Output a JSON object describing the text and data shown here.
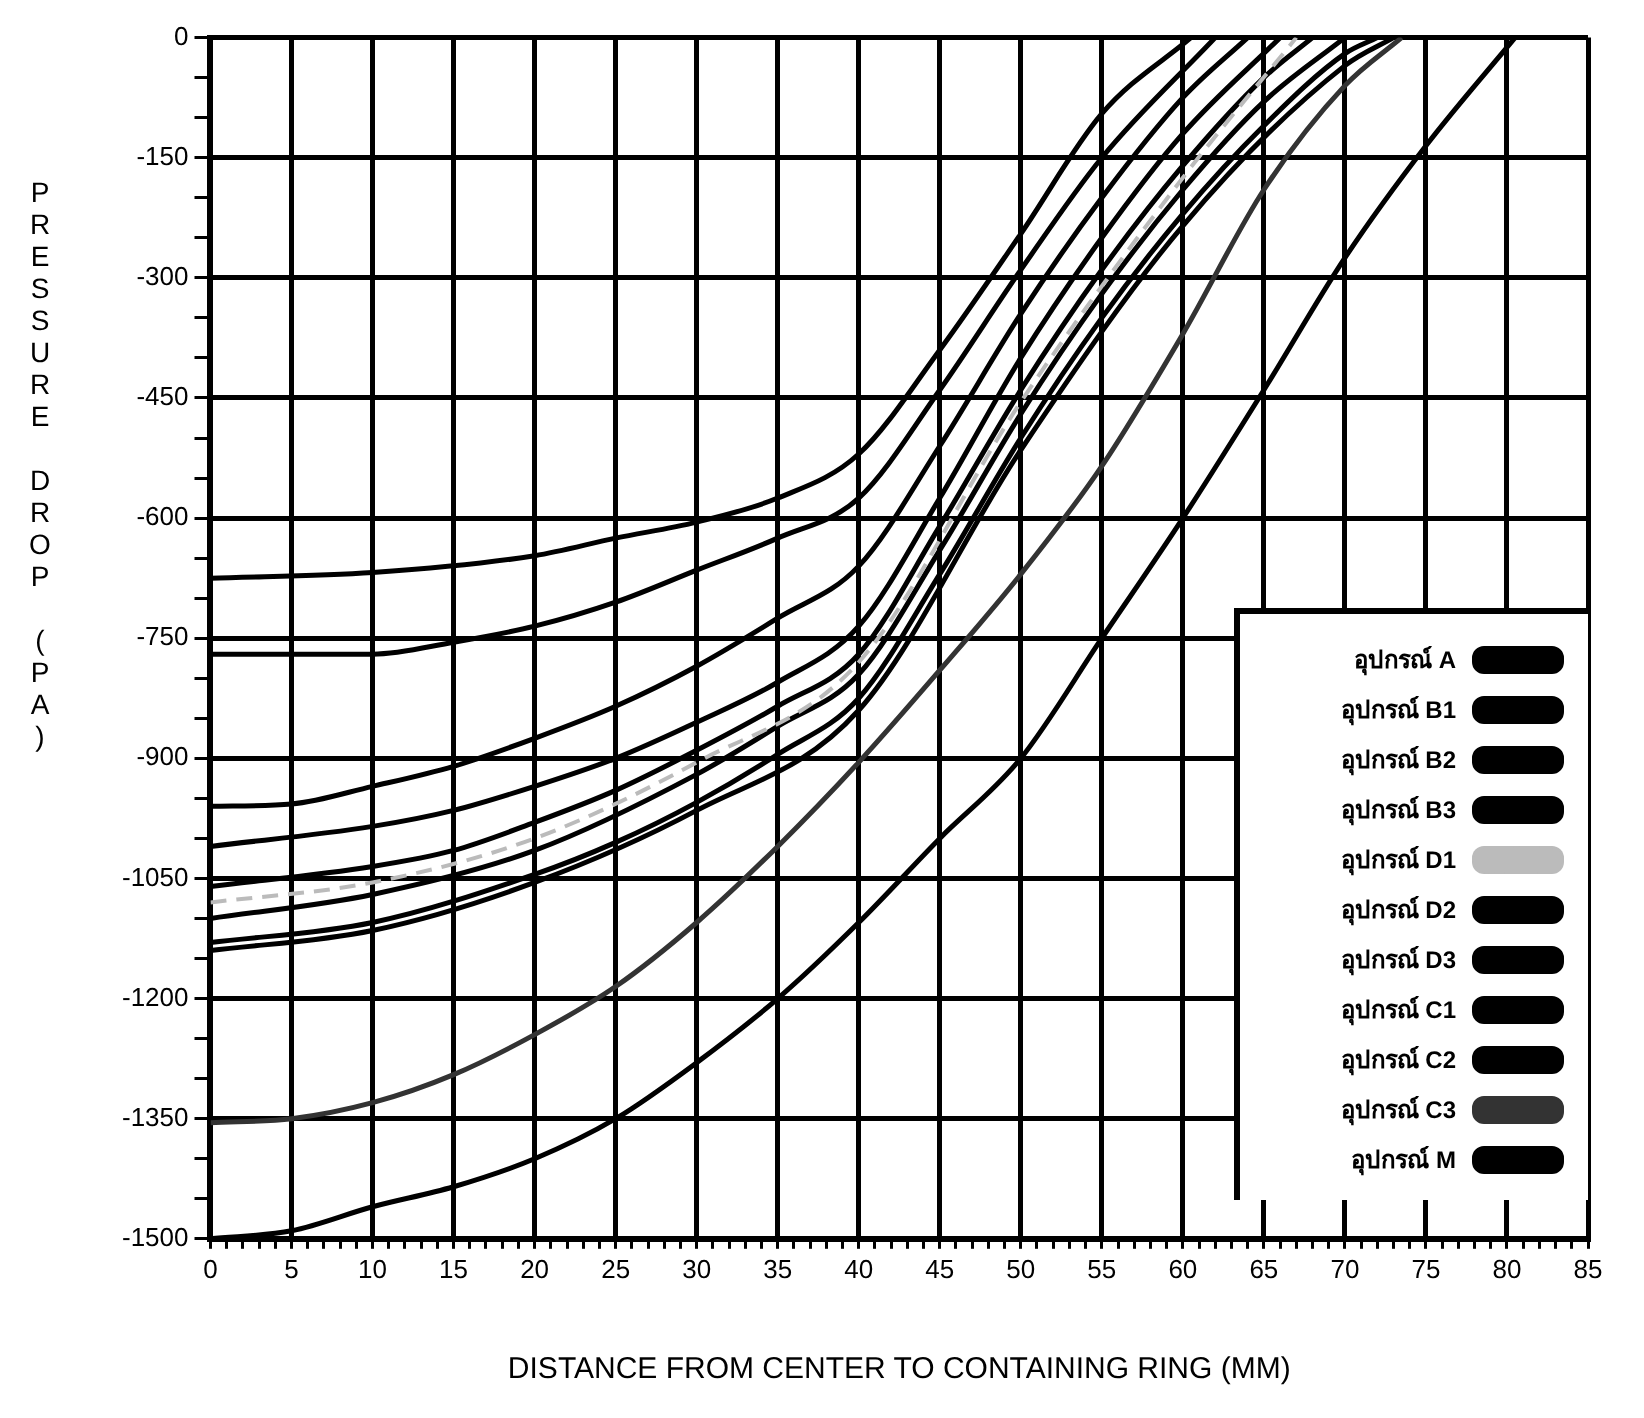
{
  "chart_data": {
    "type": "line",
    "xlabel": "DISTANCE FROM CENTER TO CONTAINING RING (MM)",
    "ylabel": "PRESSURE DROP (PA)",
    "xlim": [
      0,
      85
    ],
    "ylim": [
      -1500,
      0
    ],
    "xticks": [
      0,
      {
        "value": 1,
        "label": null
      },
      {
        "value": 2,
        "label": null
      },
      {
        "value": 3,
        "label": null
      },
      {
        "value": 4,
        "label": null
      },
      5,
      {
        "value": 6,
        "label": null
      },
      {
        "value": 7,
        "label": null
      },
      {
        "value": 8,
        "label": null
      },
      {
        "value": 9,
        "label": null
      },
      10,
      {
        "value": 11,
        "label": null
      },
      {
        "value": 12,
        "label": null
      },
      {
        "value": 13,
        "label": null
      },
      {
        "value": 14,
        "label": null
      },
      15,
      {
        "value": 16,
        "label": null
      },
      {
        "value": 17,
        "label": null
      },
      {
        "value": 18,
        "label": null
      },
      {
        "value": 19,
        "label": null
      },
      20,
      {
        "value": 21,
        "label": null
      },
      {
        "value": 22,
        "label": null
      },
      {
        "value": 23,
        "label": null
      },
      {
        "value": 24,
        "label": null
      },
      25,
      {
        "value": 26,
        "label": null
      },
      {
        "value": 27,
        "label": null
      },
      {
        "value": 28,
        "label": null
      },
      {
        "value": 29,
        "label": null
      },
      30,
      {
        "value": 31,
        "label": null
      },
      {
        "value": 32,
        "label": null
      },
      {
        "value": 33,
        "label": null
      },
      {
        "value": 34,
        "label": null
      },
      35,
      {
        "value": 36,
        "label": null
      },
      {
        "value": 37,
        "label": null
      },
      {
        "value": 38,
        "label": null
      },
      {
        "value": 39,
        "label": null
      },
      40,
      {
        "value": 41,
        "label": null
      },
      {
        "value": 42,
        "label": null
      },
      {
        "value": 43,
        "label": null
      },
      {
        "value": 44,
        "label": null
      },
      45,
      {
        "value": 46,
        "label": null
      },
      {
        "value": 47,
        "label": null
      },
      {
        "value": 48,
        "label": null
      },
      {
        "value": 49,
        "label": null
      },
      50,
      {
        "value": 51,
        "label": null
      },
      {
        "value": 52,
        "label": null
      },
      {
        "value": 53,
        "label": null
      },
      {
        "value": 54,
        "label": null
      },
      55,
      {
        "value": 56,
        "label": null
      },
      {
        "value": 57,
        "label": null
      },
      {
        "value": 58,
        "label": null
      },
      {
        "value": 59,
        "label": null
      },
      60,
      {
        "value": 61,
        "label": null
      },
      {
        "value": 62,
        "label": null
      },
      {
        "value": 63,
        "label": null
      },
      {
        "value": 64,
        "label": null
      },
      65,
      {
        "value": 66,
        "label": null
      },
      {
        "value": 67,
        "label": null
      },
      {
        "value": 68,
        "label": null
      },
      {
        "value": 69,
        "label": null
      },
      70,
      {
        "value": 71,
        "label": null
      },
      {
        "value": 72,
        "label": null
      },
      {
        "value": 73,
        "label": null
      },
      {
        "value": 74,
        "label": null
      },
      75,
      {
        "value": 76,
        "label": null
      },
      {
        "value": 77,
        "label": null
      },
      {
        "value": 78,
        "label": null
      },
      {
        "value": 79,
        "label": null
      },
      80,
      {
        "value": 81,
        "label": null
      },
      {
        "value": 82,
        "label": null
      },
      {
        "value": 83,
        "label": null
      },
      {
        "value": 84,
        "label": null
      },
      85
    ],
    "yticks": [
      -1500,
      {
        "value": -1450,
        "label": null
      },
      {
        "value": -1400,
        "label": null
      },
      -1350,
      {
        "value": -1300,
        "label": null
      },
      {
        "value": -1250,
        "label": null
      },
      -1200,
      {
        "value": -1150,
        "label": null
      },
      {
        "value": -1100,
        "label": null
      },
      -1050,
      {
        "value": -1000,
        "label": null
      },
      {
        "value": -950,
        "label": null
      },
      -900,
      {
        "value": -850,
        "label": null
      },
      {
        "value": -800,
        "label": null
      },
      -750,
      {
        "value": -700,
        "label": null
      },
      {
        "value": -650,
        "label": null
      },
      -600,
      {
        "value": -550,
        "label": null
      },
      {
        "value": -500,
        "label": null
      },
      -450,
      {
        "value": -400,
        "label": null
      },
      {
        "value": -350,
        "label": null
      },
      -300,
      {
        "value": -250,
        "label": null
      },
      {
        "value": -200,
        "label": null
      },
      -150,
      {
        "value": -100,
        "label": null
      },
      {
        "value": -50,
        "label": null
      },
      0
    ],
    "grid": true,
    "legend": "bottom right",
    "marker": "none",
    "line_style": "solid",
    "series": [
      {
        "name": "อุปกรณ์ A",
        "color": "#000000",
        "x": [
          0,
          10,
          20,
          25,
          30,
          35,
          40,
          45,
          50,
          55,
          60.5
        ],
        "values": [
          -675,
          -668,
          -647,
          -625,
          -605,
          -575,
          -520,
          -390,
          -245,
          -95,
          0
        ]
      },
      {
        "name": "อุปกรณ์ B1",
        "color": "#000000",
        "x": [
          0,
          10,
          15,
          20,
          25,
          30,
          35,
          40,
          45,
          50,
          55,
          62
        ],
        "values": [
          -770,
          -770,
          -755,
          -735,
          -705,
          -665,
          -625,
          -575,
          -440,
          -290,
          -150,
          0
        ]
      },
      {
        "name": "อุปกรณ์ B2",
        "color": "#000000",
        "x": [
          0,
          5,
          10,
          15,
          20,
          25,
          30,
          35,
          40,
          45,
          50,
          55,
          60,
          64
        ],
        "values": [
          -960,
          -957,
          -935,
          -910,
          -875,
          -835,
          -785,
          -725,
          -660,
          -510,
          -345,
          -200,
          -75,
          0
        ]
      },
      {
        "name": "อุปกรณ์ B3",
        "color": "#000000",
        "x": [
          0,
          10,
          15,
          20,
          25,
          30,
          35,
          40,
          45,
          50,
          55,
          60,
          66
        ],
        "values": [
          -1010,
          -985,
          -965,
          -935,
          -900,
          -855,
          -805,
          -735,
          -575,
          -400,
          -250,
          -120,
          0
        ]
      },
      {
        "name": "อุปกรณ์ D1",
        "color": "#bbbbbb",
        "line_style": "dashed",
        "x": [
          0,
          10,
          20,
          30,
          40,
          50,
          60,
          67
        ],
        "values": [
          -1080,
          -1055,
          -1000,
          -905,
          -780,
          -455,
          -175,
          0
        ]
      },
      {
        "name": "อุปกรณ์ D2",
        "color": "#000000",
        "x": [
          0,
          10,
          15,
          20,
          25,
          30,
          35,
          40,
          45,
          50,
          55,
          60,
          65,
          68
        ],
        "values": [
          -1060,
          -1035,
          -1015,
          -980,
          -940,
          -890,
          -835,
          -770,
          -610,
          -440,
          -290,
          -160,
          -50,
          0
        ]
      },
      {
        "name": "อุปกรณ์ D3",
        "color": "#000000",
        "x": [
          0,
          10,
          20,
          30,
          35,
          40,
          45,
          50,
          55,
          60,
          65,
          70
        ],
        "values": [
          -1100,
          -1070,
          -1015,
          -920,
          -860,
          -795,
          -640,
          -470,
          -320,
          -190,
          -80,
          0
        ]
      },
      {
        "name": "อุปกรณ์ C1",
        "color": "#000000",
        "x": [
          0,
          10,
          20,
          25,
          30,
          35,
          40,
          45,
          50,
          55,
          60,
          65,
          70,
          72
        ],
        "values": [
          -1130,
          -1105,
          -1045,
          -1005,
          -955,
          -895,
          -825,
          -670,
          -500,
          -350,
          -220,
          -110,
          -20,
          0
        ]
      },
      {
        "name": "อุปกรณ์ C2",
        "color": "#000000",
        "x": [
          0,
          10,
          20,
          30,
          40,
          50,
          60,
          70,
          73
        ],
        "values": [
          -1140,
          -1115,
          -1055,
          -965,
          -840,
          -515,
          -235,
          -35,
          0
        ]
      },
      {
        "name": "อุปกรณ์ C3",
        "color": "#333333",
        "x": [
          0,
          5,
          10,
          15,
          20,
          25,
          30,
          35,
          40,
          45,
          50,
          55,
          60,
          65,
          70,
          73.5
        ],
        "values": [
          -1355,
          -1350,
          -1330,
          -1295,
          -1245,
          -1185,
          -1105,
          -1010,
          -905,
          -790,
          -670,
          -535,
          -370,
          -190,
          -60,
          0
        ]
      },
      {
        "name": "อุปกรณ์ M",
        "color": "#000000",
        "x": [
          0,
          5,
          10,
          15,
          20,
          25,
          30,
          35,
          40,
          45,
          50,
          55,
          60,
          65,
          70,
          75,
          80.5
        ],
        "values": [
          -1500,
          -1490,
          -1460,
          -1435,
          -1400,
          -1350,
          -1280,
          -1200,
          -1105,
          -1000,
          -900,
          -750,
          -600,
          -440,
          -275,
          -135,
          0
        ]
      }
    ]
  }
}
